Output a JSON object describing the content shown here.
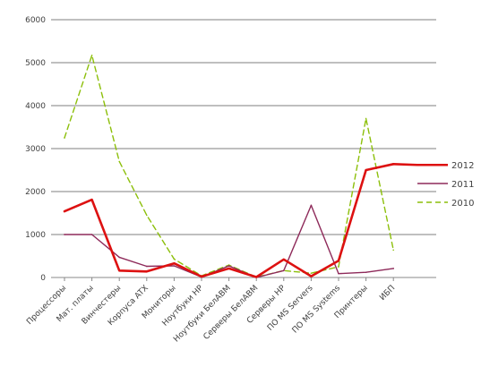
{
  "chart_data": {
    "type": "line",
    "categories": [
      "Процессоры",
      "Мат. платы",
      "Винчестеры",
      "Корпуса ATX",
      "Мониторы",
      "Ноутбуки HP",
      "Ноутбуки БелАВМ",
      "Серверы БелАВМ",
      "Серверы HP",
      "ПО MS Servers",
      "ПО MS Systems",
      "Принтеры",
      "ИБП"
    ],
    "y_ticks": [
      "0",
      "1000",
      "2000",
      "3000",
      "4000",
      "5000",
      "6000"
    ],
    "ylim": [
      0,
      6000
    ],
    "grid": "horizontal",
    "legend_position": "right",
    "series": [
      {
        "name": "2012",
        "color": "#dd1111",
        "style": "solid-thick",
        "values": [
          1540,
          1810,
          160,
          140,
          330,
          20,
          210,
          10,
          420,
          30,
          390,
          2500,
          2640
        ],
        "legend_extension": 2620
      },
      {
        "name": "2011",
        "color": "#8e2a5a",
        "style": "solid",
        "values": [
          1000,
          1000,
          470,
          260,
          270,
          10,
          270,
          0,
          160,
          1680,
          90,
          120,
          210
        ]
      },
      {
        "name": "2010",
        "color": "#8cbf0a",
        "style": "dashed",
        "values": [
          3250,
          5170,
          2700,
          1450,
          430,
          40,
          290,
          10,
          160,
          100,
          250,
          3700,
          640
        ]
      }
    ]
  }
}
